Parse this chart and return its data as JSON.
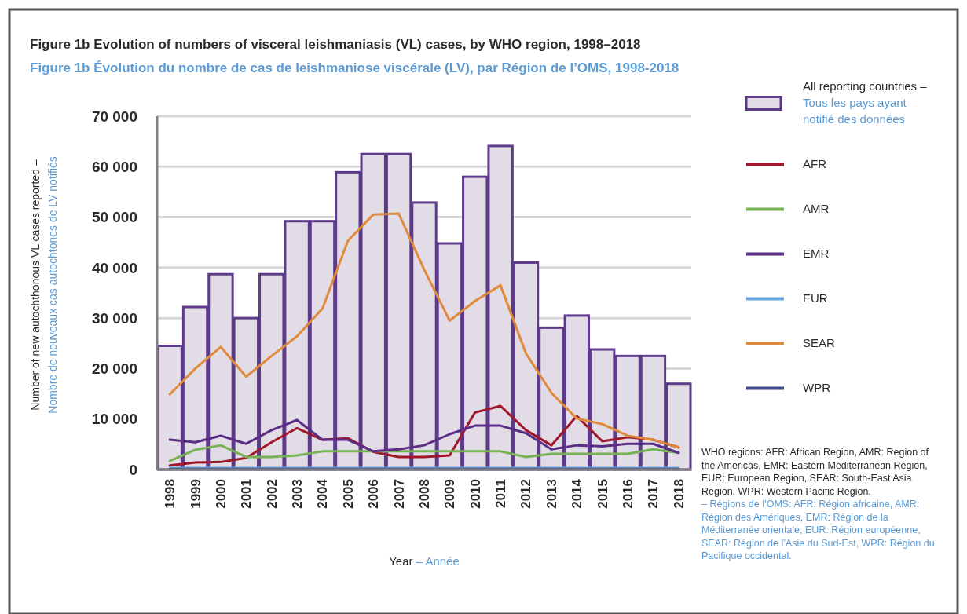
{
  "chart_data": {
    "type": "bar",
    "title": "Figure 1b  Evolution of numbers of visceral leishmaniasis (VL) cases, by WHO region, 1998–2018",
    "subtitle": "Figure 1b  Évolution du nombre de cas de leishmaniose viscérale (LV), par Région de l’OMS, 1998-2018",
    "xlabel": "Year – Année",
    "ylabel": "Number of new autochthonous VL cases reported – Nombre de nouveaux cas autochtones de LV notifiés",
    "categories": [
      "1998",
      "1999",
      "2000",
      "2001",
      "2002",
      "2003",
      "2004",
      "2005",
      "2006",
      "2007",
      "2008",
      "2009",
      "2010",
      "2011",
      "2012",
      "2013",
      "2014",
      "2015",
      "2016",
      "2017",
      "2018"
    ],
    "series": [
      {
        "name": "All reporting countries – Tous les pays ayant notifié des données",
        "color": "#e2dce6",
        "values": [
          24500,
          32200,
          38700,
          30000,
          38700,
          49200,
          49200,
          58900,
          62500,
          62500,
          52900,
          44800,
          58000,
          64100,
          41000,
          28100,
          30500,
          23800,
          22500,
          22500,
          17000
        ]
      },
      {
        "name": "AFR",
        "type": "line",
        "color": "#a0162b",
        "values": [
          800,
          1400,
          1500,
          2300,
          5400,
          8200,
          5900,
          6200,
          3500,
          2500,
          2500,
          2800,
          11300,
          12600,
          7800,
          4800,
          10600,
          5600,
          6400,
          5900,
          4400
        ]
      },
      {
        "name": "AMR",
        "type": "line",
        "color": "#77b255",
        "values": [
          1700,
          3900,
          4800,
          2500,
          2500,
          2800,
          3600,
          3600,
          3600,
          3600,
          3600,
          3600,
          3600,
          3600,
          2500,
          3100,
          3100,
          3100,
          3100,
          4000,
          3300
        ]
      },
      {
        "name": "EMR",
        "type": "line",
        "color": "#5b2d86",
        "values": [
          5900,
          5400,
          6700,
          5100,
          7800,
          9800,
          5900,
          5900,
          3600,
          4000,
          4800,
          7000,
          8700,
          8700,
          7200,
          4000,
          4800,
          4600,
          5100,
          5100,
          3300
        ]
      },
      {
        "name": "EUR",
        "type": "line",
        "color": "#6aa6dc",
        "values": [
          300,
          300,
          300,
          300,
          300,
          300,
          300,
          300,
          300,
          300,
          300,
          300,
          300,
          300,
          300,
          300,
          300,
          300,
          300,
          300,
          300
        ]
      },
      {
        "name": "SEAR",
        "type": "line",
        "color": "#e08a3c",
        "values": [
          14900,
          20000,
          24300,
          18400,
          22500,
          26400,
          31900,
          45300,
          50500,
          50700,
          39600,
          29500,
          33400,
          36500,
          23000,
          15200,
          10100,
          9000,
          6700,
          5900,
          4400
        ]
      },
      {
        "name": "WPR",
        "type": "line",
        "color": "#3b4a8c",
        "values": [
          100,
          100,
          100,
          100,
          100,
          100,
          100,
          100,
          100,
          100,
          100,
          100,
          100,
          100,
          100,
          100,
          100,
          100,
          100,
          100,
          100
        ]
      }
    ],
    "ylim": [
      0,
      70000
    ],
    "yticks": [
      0,
      {
        "value": 10000,
        "label": "10 000"
      },
      {
        "value": 20000,
        "label": "20 000"
      },
      {
        "value": 30000,
        "label": "30 000"
      },
      {
        "value": 40000,
        "label": "40 000"
      },
      {
        "value": 50000,
        "label": "50 000"
      },
      {
        "value": 60000,
        "label": "60 000"
      },
      {
        "value": 70000,
        "label": "70 000"
      }
    ],
    "grid": "y",
    "legend": "right",
    "line_style": "solid",
    "annotations": [
      "WHO regions: AFR: African Region, AMR: Region of the Americas, EMR: Eastern Mediterranean Region, EUR: European Region, SEAR: South-East Asia Region, WPR: Western Pacific Region.",
      "– Régions de l’OMS: AFR: Région africaine, AMR: Région des Amériques, EMR: Région de la Méditerranée orientale, EUR: Région européenne, SEAR: Région de l’Asie du Sud-Est, WPR: Région du Pacifique occidental."
    ]
  }
}
